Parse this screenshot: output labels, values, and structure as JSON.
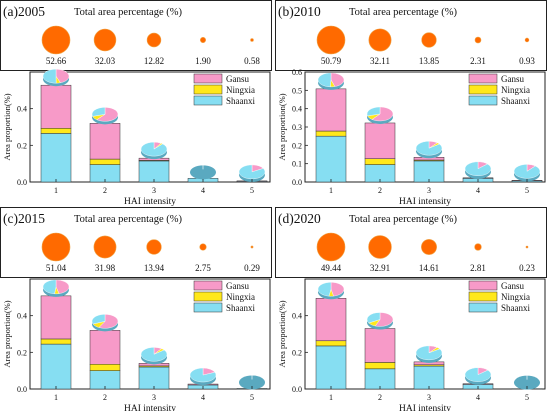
{
  "colors": {
    "gansu": "#f79ac8",
    "ningxia": "#ffe81a",
    "shaanxi": "#86def2",
    "bubble": "#ff6a00",
    "bubble_edge": "#f0a040",
    "frame": "#222222"
  },
  "chart_data": [
    {
      "type": "bar",
      "panel_label": "(a)2005",
      "bubble_title": "Total area percentage (%)",
      "bubble_values": [
        52.66,
        32.03,
        12.82,
        1.9,
        0.58
      ],
      "bubble_labels": [
        "52.66",
        "32.03",
        "12.82",
        "1.90",
        "0.58"
      ],
      "categories": [
        "1",
        "2",
        "3",
        "4",
        "5"
      ],
      "xlabel": "HAI intensity",
      "ylabel": "Area proportion(%)",
      "ylim": [
        0,
        0.6
      ],
      "yticks": [
        "0.0",
        "0.2",
        "0.4"
      ],
      "legend_position": "top-right",
      "series": [
        {
          "name": "Shaanxi",
          "values": [
            0.265,
            0.095,
            0.115,
            0.02,
            0.005
          ]
        },
        {
          "name": "Ningxia",
          "values": [
            0.028,
            0.03,
            0.003,
            0.0,
            0.0
          ]
        },
        {
          "name": "Gansu",
          "values": [
            0.235,
            0.195,
            0.012,
            0.0,
            0.001
          ]
        }
      ]
    },
    {
      "type": "bar",
      "panel_label": "(b)2010",
      "bubble_title": "Total area percentage (%)",
      "bubble_values": [
        50.79,
        32.11,
        13.85,
        2.31,
        0.93
      ],
      "bubble_labels": [
        "50.79",
        "32.11",
        "13.85",
        "2.31",
        "0.93"
      ],
      "categories": [
        "1",
        "2",
        "3",
        "4",
        "5"
      ],
      "xlabel": "HAI intensity",
      "ylabel": "Area proportion(%)",
      "ylim": [
        0,
        0.6
      ],
      "yticks": [
        "0.0",
        "0.1",
        "0.2",
        "0.3",
        "0.4",
        "0.5",
        "0.6"
      ],
      "legend_position": "top-right",
      "series": [
        {
          "name": "Shaanxi",
          "values": [
            0.25,
            0.095,
            0.115,
            0.02,
            0.008
          ]
        },
        {
          "name": "Ningxia",
          "values": [
            0.028,
            0.032,
            0.005,
            0.0,
            0.0
          ]
        },
        {
          "name": "Gansu",
          "values": [
            0.23,
            0.195,
            0.015,
            0.003,
            0.001
          ]
        }
      ]
    },
    {
      "type": "bar",
      "panel_label": "(c)2015",
      "bubble_title": "Total area percentage (%)",
      "bubble_values": [
        51.04,
        31.98,
        13.94,
        2.75,
        0.29
      ],
      "bubble_labels": [
        "51.04",
        "31.98",
        "13.94",
        "2.75",
        "0.29"
      ],
      "categories": [
        "1",
        "2",
        "3",
        "4",
        "5"
      ],
      "xlabel": "HAI intensity",
      "ylabel": "Area proportion(%)",
      "ylim": [
        0,
        0.6
      ],
      "yticks": [
        "0.0",
        "0.2",
        "0.4"
      ],
      "legend_position": "top-right",
      "series": [
        {
          "name": "Shaanxi",
          "values": [
            0.245,
            0.1,
            0.12,
            0.022,
            0.003
          ]
        },
        {
          "name": "Ningxia",
          "values": [
            0.028,
            0.035,
            0.006,
            0.0,
            0.0
          ]
        },
        {
          "name": "Gansu",
          "values": [
            0.235,
            0.185,
            0.014,
            0.005,
            0.0
          ]
        }
      ]
    },
    {
      "type": "bar",
      "panel_label": "(d)2020",
      "bubble_title": "Total area percentage (%)",
      "bubble_values": [
        49.44,
        32.91,
        14.61,
        2.81,
        0.23
      ],
      "bubble_labels": [
        "49.44",
        "32.91",
        "14.61",
        "2.81",
        "0.23"
      ],
      "categories": [
        "1",
        "2",
        "3",
        "4",
        "5"
      ],
      "xlabel": "HAI intensity",
      "ylabel": "Area proportion(%)",
      "ylim": [
        0,
        0.6
      ],
      "yticks": [
        "0.0",
        "0.2",
        "0.4"
      ],
      "legend_position": "top-right",
      "series": [
        {
          "name": "Shaanxi",
          "values": [
            0.235,
            0.11,
            0.125,
            0.025,
            0.002
          ]
        },
        {
          "name": "Ningxia",
          "values": [
            0.028,
            0.035,
            0.007,
            0.0,
            0.0
          ]
        },
        {
          "name": "Gansu",
          "values": [
            0.232,
            0.185,
            0.016,
            0.004,
            0.0
          ]
        }
      ]
    }
  ]
}
